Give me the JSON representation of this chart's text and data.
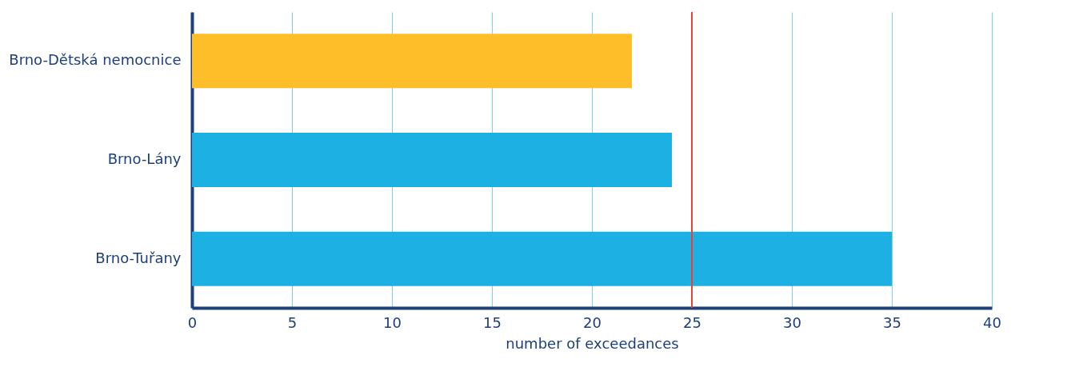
{
  "chart_data": {
    "type": "bar",
    "orientation": "horizontal",
    "categories": [
      "Brno-Dětská nemocnice",
      "Brno-Lány",
      "Brno-Tuřany"
    ],
    "values": [
      22,
      24,
      35
    ],
    "colors": [
      "#fdbe2a",
      "#1cb0e3",
      "#1cb0e3"
    ],
    "xlabel": "number of exceedances",
    "xlim": [
      0,
      40
    ],
    "xticks": [
      0,
      5,
      10,
      15,
      20,
      25,
      30,
      35,
      40
    ],
    "grid": "x",
    "ref_lines": [
      {
        "axis": "x",
        "value": 25,
        "color": "#e8403a"
      }
    ]
  }
}
